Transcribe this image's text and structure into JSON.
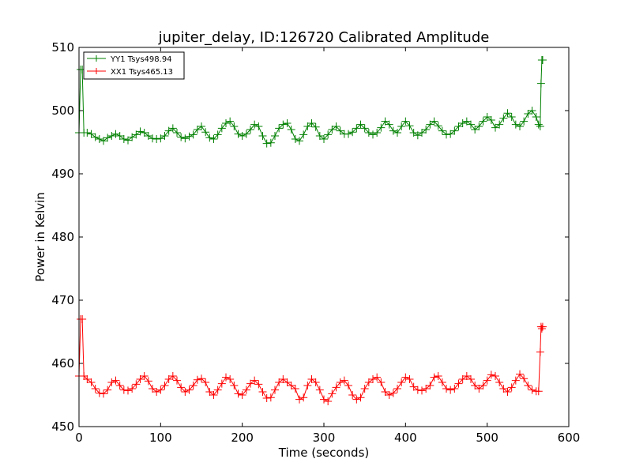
{
  "chart_data": {
    "type": "line",
    "title": "jupiter_delay, ID:126720 Calibrated Amplitude",
    "xlabel": "Time (seconds)",
    "ylabel": "Power in Kelvin",
    "xlim": [
      0,
      600
    ],
    "ylim": [
      450,
      510
    ],
    "xticks": [
      0,
      100,
      200,
      300,
      400,
      500,
      600
    ],
    "yticks": [
      450,
      460,
      470,
      480,
      490,
      500,
      510
    ],
    "xtick_labels": [
      "0",
      "100",
      "200",
      "300",
      "400",
      "500",
      "600"
    ],
    "ytick_labels": [
      "450",
      "460",
      "470",
      "480",
      "490",
      "500",
      "510"
    ],
    "grid": false,
    "legend_position": "top-left",
    "marker": "plus",
    "series": [
      {
        "name": "YY1 Tsys498.94",
        "color": "#008000",
        "x": [
          0,
          2,
          4,
          6,
          10,
          15,
          20,
          25,
          30,
          35,
          40,
          45,
          50,
          55,
          60,
          65,
          70,
          75,
          80,
          85,
          90,
          95,
          100,
          105,
          110,
          115,
          120,
          125,
          130,
          135,
          140,
          145,
          150,
          155,
          160,
          165,
          170,
          175,
          180,
          185,
          190,
          195,
          200,
          205,
          210,
          215,
          220,
          225,
          230,
          235,
          240,
          245,
          250,
          255,
          260,
          265,
          270,
          275,
          280,
          285,
          290,
          295,
          300,
          305,
          310,
          315,
          320,
          325,
          330,
          335,
          340,
          345,
          350,
          355,
          360,
          365,
          370,
          375,
          380,
          385,
          390,
          395,
          400,
          405,
          410,
          415,
          420,
          425,
          430,
          435,
          440,
          445,
          450,
          455,
          460,
          465,
          470,
          475,
          480,
          485,
          490,
          495,
          500,
          505,
          510,
          515,
          520,
          525,
          530,
          535,
          540,
          545,
          550,
          555,
          560,
          563,
          565,
          566,
          567,
          568
        ],
        "y": [
          496.5,
          506.5,
          506.5,
          496.5,
          496.5,
          496.3,
          495.8,
          495.5,
          495.2,
          495.7,
          496.0,
          496.3,
          496.0,
          495.5,
          495.3,
          495.8,
          496.2,
          496.7,
          496.5,
          496.0,
          495.6,
          495.5,
          495.6,
          496.0,
          496.8,
          497.2,
          496.5,
          495.8,
          495.6,
          495.9,
          496.2,
          497.0,
          497.5,
          496.6,
          495.7,
          495.5,
          496.2,
          497.2,
          498.0,
          498.3,
          497.5,
          496.3,
          496.0,
          496.3,
          497.0,
          497.8,
          497.5,
          496.0,
          494.8,
          494.9,
          496.0,
          497.2,
          497.8,
          498.0,
          497.0,
          495.5,
          495.2,
          496.2,
          497.5,
          498.0,
          497.4,
          496.0,
          495.5,
          496.2,
          497.0,
          497.5,
          496.8,
          496.3,
          496.3,
          496.6,
          497.2,
          497.8,
          497.2,
          496.5,
          496.2,
          496.5,
          497.3,
          498.3,
          497.8,
          496.8,
          496.5,
          497.5,
          498.3,
          497.6,
          496.5,
          496.1,
          496.5,
          497.0,
          497.8,
          498.3,
          497.6,
          496.8,
          496.2,
          496.3,
          496.8,
          497.5,
          498.0,
          498.3,
          497.8,
          497.0,
          497.5,
          498.3,
          499.0,
          498.5,
          497.3,
          497.8,
          498.8,
          499.6,
          499.0,
          497.8,
          497.5,
          498.3,
          499.5,
          500.0,
          499.0,
          497.8,
          497.5,
          504.3,
          508.0,
          508.0
        ],
        "line_x": [
          0,
          2,
          4,
          6,
          10,
          15,
          20,
          25,
          30,
          35,
          40,
          45,
          50,
          55,
          60,
          65,
          70,
          75,
          80,
          85,
          90,
          95,
          100,
          105,
          110,
          115,
          120,
          125,
          130,
          135,
          140,
          145,
          150,
          155,
          160,
          165,
          170,
          175,
          180,
          185,
          190,
          195,
          200,
          205,
          210,
          215,
          220,
          225,
          230,
          235,
          240,
          245,
          250,
          255,
          260,
          265,
          270,
          275,
          280,
          285,
          290,
          295,
          300,
          305,
          310,
          315,
          320,
          325,
          330,
          335,
          340,
          345,
          350,
          355,
          360,
          365,
          370,
          375,
          380,
          385,
          390,
          395,
          400,
          405,
          410,
          415,
          420,
          425,
          430,
          435,
          440,
          445,
          450,
          455,
          460,
          465,
          470,
          475,
          480,
          485,
          490,
          495,
          500,
          505,
          510,
          515,
          520,
          525,
          530,
          535,
          540,
          545,
          550,
          555,
          560,
          563,
          565,
          566,
          567,
          568
        ]
      },
      {
        "name": "XX1 Tsys465.13",
        "color": "#ff0000",
        "x": [
          0,
          2,
          4,
          6,
          10,
          15,
          20,
          25,
          30,
          35,
          40,
          45,
          50,
          55,
          60,
          65,
          70,
          75,
          80,
          85,
          90,
          95,
          100,
          105,
          110,
          115,
          120,
          125,
          130,
          135,
          140,
          145,
          150,
          155,
          160,
          165,
          170,
          175,
          180,
          185,
          190,
          195,
          200,
          205,
          210,
          215,
          220,
          225,
          230,
          235,
          240,
          245,
          250,
          255,
          260,
          265,
          270,
          275,
          280,
          285,
          290,
          295,
          300,
          305,
          310,
          315,
          320,
          325,
          330,
          335,
          340,
          345,
          350,
          355,
          360,
          365,
          370,
          375,
          380,
          385,
          390,
          395,
          400,
          405,
          410,
          415,
          420,
          425,
          430,
          435,
          440,
          445,
          450,
          455,
          460,
          465,
          470,
          475,
          480,
          485,
          490,
          495,
          500,
          505,
          510,
          515,
          520,
          525,
          530,
          535,
          540,
          545,
          550,
          555,
          560,
          563,
          565,
          566,
          567,
          568
        ],
        "y": [
          458.0,
          467.0,
          467.0,
          458.0,
          457.5,
          457.0,
          456.0,
          455.3,
          455.2,
          455.8,
          457.0,
          457.3,
          456.5,
          455.8,
          455.7,
          456.0,
          456.7,
          457.5,
          458.0,
          457.2,
          456.0,
          455.5,
          455.8,
          456.5,
          457.5,
          458.0,
          457.3,
          456.2,
          455.5,
          455.8,
          456.5,
          457.4,
          457.6,
          457.0,
          455.5,
          455.0,
          455.8,
          456.8,
          457.8,
          457.5,
          456.5,
          455.2,
          455.0,
          455.8,
          456.8,
          457.3,
          456.7,
          455.5,
          454.5,
          454.6,
          455.8,
          457.0,
          457.5,
          457.0,
          456.5,
          456.0,
          454.3,
          454.6,
          456.5,
          457.5,
          457.0,
          455.8,
          454.3,
          454.0,
          455.2,
          456.2,
          457.0,
          457.3,
          456.5,
          455.0,
          454.3,
          454.6,
          456.0,
          457.0,
          457.5,
          457.8,
          457.0,
          455.5,
          455.0,
          455.3,
          456.0,
          457.0,
          457.8,
          457.5,
          456.3,
          455.8,
          455.7,
          456.0,
          456.5,
          457.8,
          458.0,
          457.0,
          456.0,
          455.8,
          456.0,
          456.8,
          457.5,
          458.0,
          457.5,
          456.5,
          456.0,
          456.5,
          457.3,
          458.2,
          458.0,
          457.0,
          456.0,
          455.5,
          456.2,
          457.3,
          458.3,
          457.6,
          456.5,
          455.8,
          455.6,
          455.6,
          461.8,
          465.8,
          465.5,
          465.8
        ]
      }
    ]
  }
}
